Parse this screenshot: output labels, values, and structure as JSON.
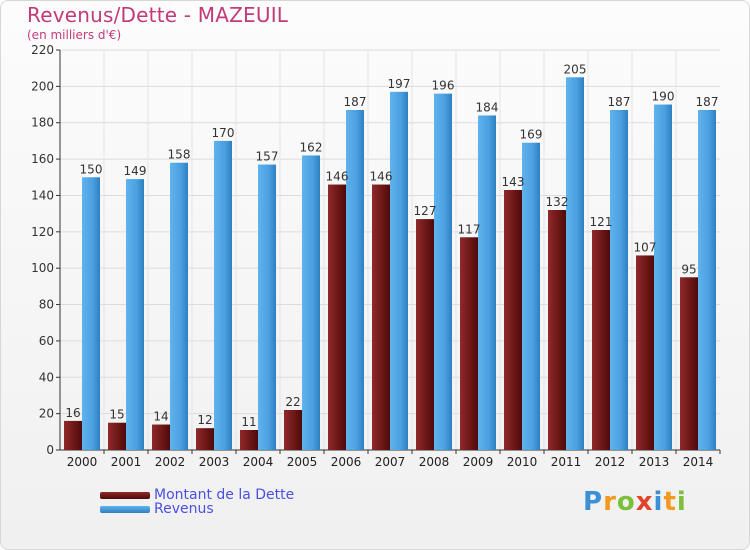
{
  "title": "Revenus/Dette - MAZEUIL",
  "subtitle": "(en milliers d'€)",
  "logo": "Proxiti",
  "chart_data": {
    "type": "bar",
    "categories": [
      "2000",
      "2001",
      "2002",
      "2003",
      "2004",
      "2005",
      "2006",
      "2007",
      "2008",
      "2009",
      "2010",
      "2011",
      "2012",
      "2013",
      "2014"
    ],
    "series": [
      {
        "name": "Montant de la Dette",
        "color": "#7a1f1f",
        "values": [
          16,
          15,
          14,
          12,
          11,
          22,
          146,
          146,
          127,
          117,
          143,
          132,
          121,
          107,
          95
        ]
      },
      {
        "name": "Revenus",
        "color": "#4ea2e0",
        "values": [
          150,
          149,
          158,
          170,
          157,
          162,
          187,
          197,
          196,
          184,
          169,
          205,
          187,
          190,
          187
        ]
      }
    ],
    "ylim": [
      0,
      220
    ],
    "yticks": [
      0,
      20,
      40,
      60,
      80,
      100,
      120,
      140,
      160,
      180,
      200,
      220
    ],
    "grid": true,
    "legend_position": "bottom-left"
  }
}
